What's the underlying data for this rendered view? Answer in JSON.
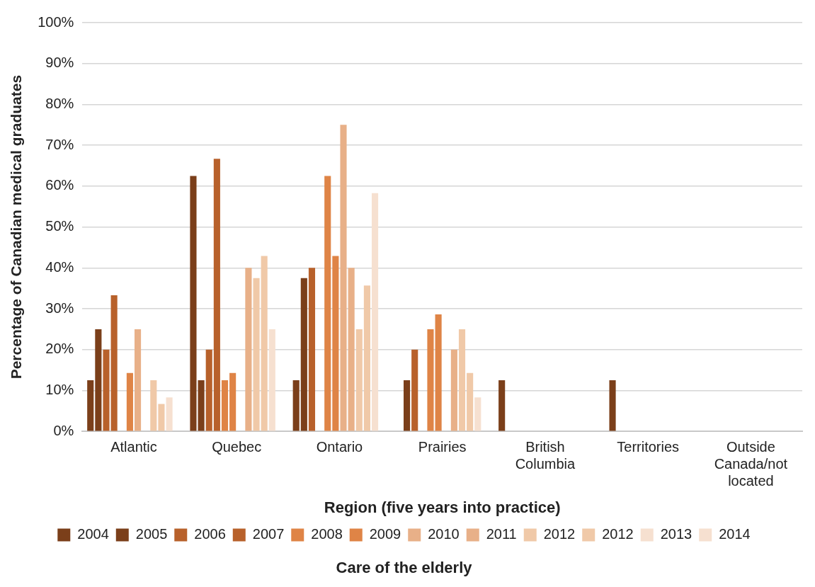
{
  "chart_data": {
    "type": "bar",
    "title": "Care of the elderly",
    "xlabel": "Region (five years into practice)",
    "ylabel": "Percentage of Canadian medical graduates",
    "categories": [
      "Atlantic",
      "Quebec",
      "Ontario",
      "Prairies",
      "British Columbia",
      "Territories",
      "Outside Canada/not located"
    ],
    "series": [
      {
        "name": "2004",
        "color": "#7b3f1a",
        "values": [
          12.5,
          62.5,
          12.5,
          null,
          12.5,
          null,
          null
        ]
      },
      {
        "name": "2005",
        "color": "#7b3f1a",
        "values": [
          25,
          12.5,
          37.5,
          12.5,
          null,
          12.5,
          null
        ]
      },
      {
        "name": "2006",
        "color": "#b8612b",
        "values": [
          20,
          20,
          40,
          20,
          null,
          null,
          null
        ]
      },
      {
        "name": "2007",
        "color": "#b8612b",
        "values": [
          33.3,
          66.7,
          null,
          null,
          null,
          null,
          null
        ]
      },
      {
        "name": "2008",
        "color": "#df8446",
        "values": [
          null,
          12.5,
          62.5,
          25,
          null,
          null,
          null
        ]
      },
      {
        "name": "2009",
        "color": "#df8446",
        "values": [
          14.3,
          14.3,
          42.9,
          28.6,
          null,
          null,
          null
        ]
      },
      {
        "name": "2010",
        "color": "#e8b088",
        "values": [
          25,
          null,
          75,
          null,
          null,
          null,
          null
        ]
      },
      {
        "name": "2011",
        "color": "#e8b088",
        "values": [
          null,
          40,
          40,
          20,
          null,
          null,
          null
        ]
      },
      {
        "name": "2012",
        "color": "#f0c9a8",
        "values": [
          12.5,
          37.5,
          25,
          25,
          null,
          null,
          null
        ]
      },
      {
        "name": "2012",
        "color": "#f0c9a8",
        "values": [
          6.7,
          42.9,
          35.7,
          14.3,
          null,
          null,
          null
        ]
      },
      {
        "name": "2013",
        "color": "#f6e0d0",
        "values": [
          8.3,
          25,
          58.3,
          8.3,
          null,
          null,
          null
        ]
      },
      {
        "name": "2014",
        "color": "#f6e0d0",
        "values": [
          null,
          null,
          null,
          null,
          null,
          null,
          null
        ]
      }
    ],
    "ylim": [
      0,
      100
    ],
    "yticks": [
      {
        "value": 0,
        "label": "0%"
      },
      {
        "value": 10,
        "label": "10%"
      },
      {
        "value": 20,
        "label": "20%"
      },
      {
        "value": 30,
        "label": "30%"
      },
      {
        "value": 40,
        "label": "40%"
      },
      {
        "value": 50,
        "label": "50%"
      },
      {
        "value": 60,
        "label": "60%"
      },
      {
        "value": 70,
        "label": "70%"
      },
      {
        "value": 80,
        "label": "80%"
      },
      {
        "value": 90,
        "label": "90%"
      },
      {
        "value": 100,
        "label": "100%"
      }
    ],
    "grid": "y",
    "legend": "bottom"
  }
}
